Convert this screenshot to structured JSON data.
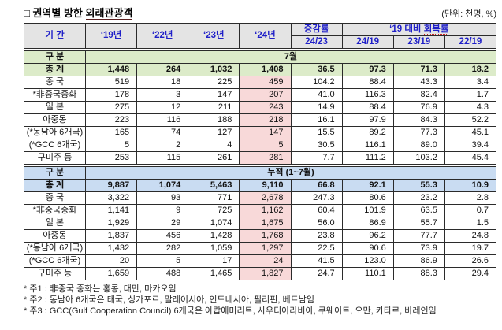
{
  "title": {
    "prefix": "□ 권역별 방한 ",
    "underlined": "외래관광객"
  },
  "unit_note": "(단위: 천명, %)",
  "colors": {
    "header_bg": "#E4E4E4",
    "header_text": "#1F1FC8",
    "section_july_bg": "#DCEBC9",
    "section_cumulative_bg": "#C9DCF2",
    "year24_highlight_bg": "#F8D9D9",
    "border": "#2B2B2B"
  },
  "header": {
    "period": "기 간",
    "years": [
      "‘19년",
      "‘22년",
      "‘23년",
      "‘24년"
    ],
    "change": {
      "label": "증감률",
      "sub": "24/23"
    },
    "recovery": {
      "prefix": "‘19 대비 ",
      "underlined": "회복률",
      "subs": [
        "24/19",
        "23/19",
        "22/19"
      ]
    }
  },
  "sections": [
    {
      "gubun": "구 분",
      "period_title": "7월",
      "rows": [
        {
          "label": "총 계",
          "values": [
            "1,448",
            "264",
            "1,032",
            "1,408",
            "36.5",
            "97.3",
            "71.3",
            "18.2"
          ]
        },
        {
          "label": "중 국",
          "values": [
            "519",
            "18",
            "225",
            "459",
            "104.2",
            "88.4",
            "43.3",
            "3.4"
          ]
        },
        {
          "label": "*非중국중화",
          "values": [
            "178",
            "3",
            "147",
            "207",
            "41.0",
            "116.3",
            "82.4",
            "1.7"
          ]
        },
        {
          "label": "일 본",
          "values": [
            "275",
            "12",
            "211",
            "243",
            "14.9",
            "88.4",
            "76.9",
            "4.3"
          ]
        },
        {
          "label": "아중동",
          "values": [
            "223",
            "116",
            "188",
            "218",
            "16.1",
            "97.9",
            "84.3",
            "52.2"
          ]
        },
        {
          "label": "(*동남아 6개국)",
          "values": [
            "165",
            "74",
            "127",
            "147",
            "15.5",
            "89.2",
            "77.3",
            "45.1"
          ]
        },
        {
          "label": "(*GCC 6개국)",
          "values": [
            "5",
            "2",
            "4",
            "5",
            "30.5",
            "116.1",
            "89.0",
            "39.4"
          ]
        },
        {
          "label": "구미주 등",
          "values": [
            "253",
            "115",
            "261",
            "281",
            "7.7",
            "111.2",
            "103.2",
            "45.4"
          ]
        }
      ]
    },
    {
      "gubun": "구 분",
      "period_title": "누적 (1~7월)",
      "rows": [
        {
          "label": "총 계",
          "values": [
            "9,887",
            "1,074",
            "5,463",
            "9,110",
            "66.8",
            "92.1",
            "55.3",
            "10.9"
          ]
        },
        {
          "label": "중 국",
          "values": [
            "3,322",
            "93",
            "771",
            "2,678",
            "247.3",
            "80.6",
            "23.2",
            "2.8"
          ]
        },
        {
          "label": "*非중국중화",
          "values": [
            "1,141",
            "9",
            "725",
            "1,162",
            "60.4",
            "101.9",
            "63.5",
            "0.7"
          ]
        },
        {
          "label": "일 본",
          "values": [
            "1,929",
            "29",
            "1,074",
            "1,675",
            "56.0",
            "86.9",
            "55.7",
            "1.5"
          ]
        },
        {
          "label": "아중동",
          "values": [
            "1,837",
            "456",
            "1,428",
            "1,768",
            "23.8",
            "96.2",
            "77.7",
            "24.8"
          ]
        },
        {
          "label": "(*동남아 6개국)",
          "values": [
            "1,432",
            "282",
            "1,059",
            "1,297",
            "22.5",
            "90.6",
            "73.9",
            "19.7"
          ]
        },
        {
          "label": "(*GCC 6개국)",
          "values": [
            "20",
            "5",
            "17",
            "24",
            "41.5",
            "123.0",
            "86.9",
            "26.6"
          ]
        },
        {
          "label": "구미주 등",
          "values": [
            "1,659",
            "488",
            "1,465",
            "1,827",
            "24.7",
            "110.1",
            "88.3",
            "29.4"
          ]
        }
      ]
    }
  ],
  "footnotes": [
    "* 주1 : 非중국 중화는 홍콩, 대만, 마카오임",
    "* 주2 : 동남아 6개국은 태국, 싱가포르, 말레이시아, 인도네시아, 필리핀, 베트남임",
    "* 주3 : GCC(Gulf Cooperation Council) 6개국은 아랍에미리트, 사우디아라비아, 쿠웨이트, 오만, 카타르, 바레인임"
  ]
}
